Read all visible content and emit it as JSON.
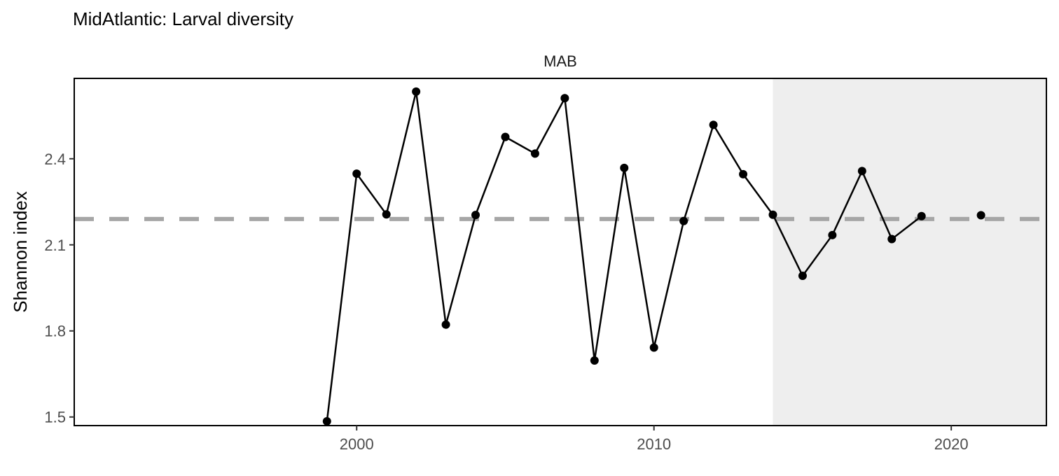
{
  "chart_data": {
    "type": "line",
    "title": "MidAtlantic: Larval diversity",
    "facet": "MAB",
    "ylabel": "Shannon index",
    "xlabel": "",
    "xlim": [
      1990.5,
      2023.2
    ],
    "ylim": [
      1.47,
      2.68
    ],
    "x_ticks": [
      2000,
      2010,
      2020
    ],
    "y_ticks": [
      1.5,
      1.8,
      2.1,
      2.4
    ],
    "y_tick_labels": [
      "1.5",
      "1.8",
      "2.1",
      "2.4"
    ],
    "x_tick_labels": [
      "2000",
      "2010",
      "2020"
    ],
    "mean_line": 2.19,
    "shaded_region": [
      2014,
      2023.2
    ],
    "grid": false,
    "series": [
      {
        "x": [
          1999,
          2000,
          2001,
          2002,
          2003,
          2004,
          2005,
          2006,
          2007,
          2008,
          2009,
          2010,
          2011,
          2012,
          2013,
          2014,
          2015,
          2016,
          2017,
          2018,
          2019,
          2021
        ],
        "y": [
          1.485,
          2.348,
          2.206,
          2.634,
          1.822,
          2.204,
          2.476,
          2.418,
          2.611,
          1.697,
          2.368,
          1.742,
          2.183,
          2.518,
          2.346,
          2.205,
          1.992,
          2.134,
          2.357,
          2.12,
          2.2,
          2.203
        ],
        "connected_until": 2019
      }
    ],
    "colors": {
      "line": "#000000",
      "point": "#000000",
      "mean_line": "#a6a6a6",
      "shade": "#eeeeee"
    }
  }
}
